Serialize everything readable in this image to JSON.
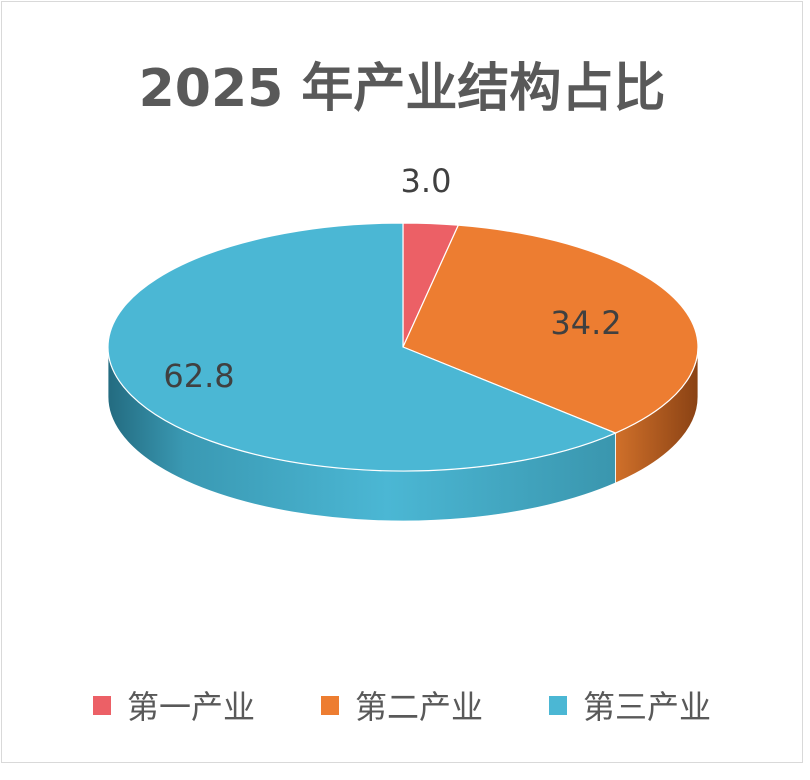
{
  "chart_data": {
    "type": "pie",
    "style": "3d",
    "title": "2025 年产业结构占比",
    "categories": [
      "第一产业",
      "第二产业",
      "第三产业"
    ],
    "values": [
      3.0,
      34.2,
      62.8
    ],
    "data_labels": [
      "3.0",
      "34.2",
      "62.8"
    ],
    "colors": [
      "#EC6066",
      "#ED7D31",
      "#4BB7D4"
    ],
    "start_angle": "12 o'clock, clockwise",
    "legend": "bottom"
  }
}
